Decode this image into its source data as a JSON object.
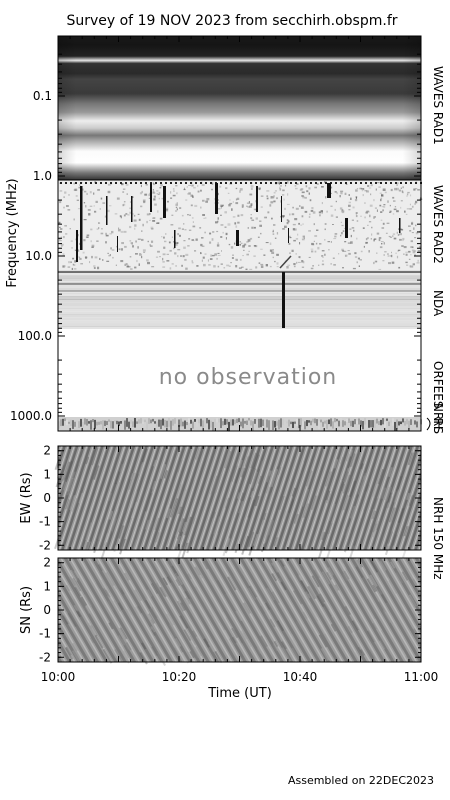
{
  "title": "Survey of 19 NOV 2023 from secchirh.obspm.fr",
  "footer": "Assembled on 22DEC2023",
  "chart_data": [
    {
      "type": "heatmap",
      "ylabel": "Frequency (MHz)",
      "yscale": "log",
      "ylim_top": 0.02,
      "ylim_bottom": 1000,
      "yticks": [
        {
          "value": 0.1,
          "label": "0.1"
        },
        {
          "value": 1.0,
          "label": "1.0"
        },
        {
          "value": 10.0,
          "label": "10.0"
        },
        {
          "value": 100.0,
          "label": "100.0"
        },
        {
          "value": 1000.0,
          "label": "1000.0"
        }
      ],
      "instruments": [
        {
          "label": "WAVES RAD1",
          "fmin": 0.02,
          "fmax": 1.0
        },
        {
          "label": "WAVES RAD2",
          "fmin": 1.0,
          "fmax": 10.0
        },
        {
          "label": "NDA",
          "fmin": 10.0,
          "fmax": 80.0
        },
        {
          "label": "ORFEES",
          "fmin": 140.0,
          "fmax": 1000.0
        },
        {
          "label": "NRH",
          "fmin": 1000.0,
          "fmax": 1000.0
        },
        {
          "label": "RS",
          "fmin": 1000.0,
          "fmax": 1000.0
        }
      ],
      "annotation": "no observation"
    },
    {
      "type": "heatmap",
      "ylabel": "EW (Rs)",
      "ylim": [
        -2.2,
        2.2
      ],
      "yticks": [
        2,
        1,
        0,
        -1,
        -2
      ]
    },
    {
      "type": "heatmap",
      "ylabel": "SN (Rs)",
      "ylim": [
        -2.2,
        2.2
      ],
      "yticks": [
        2,
        1,
        0,
        -1,
        -2
      ]
    }
  ],
  "nrh_label": "NRH 150 MHz",
  "x_axis": {
    "xlabel": "Time (UT)",
    "range": [
      "10:00",
      "11:00"
    ],
    "ticks": [
      "10:00",
      "10:20",
      "10:40",
      "11:00"
    ]
  }
}
